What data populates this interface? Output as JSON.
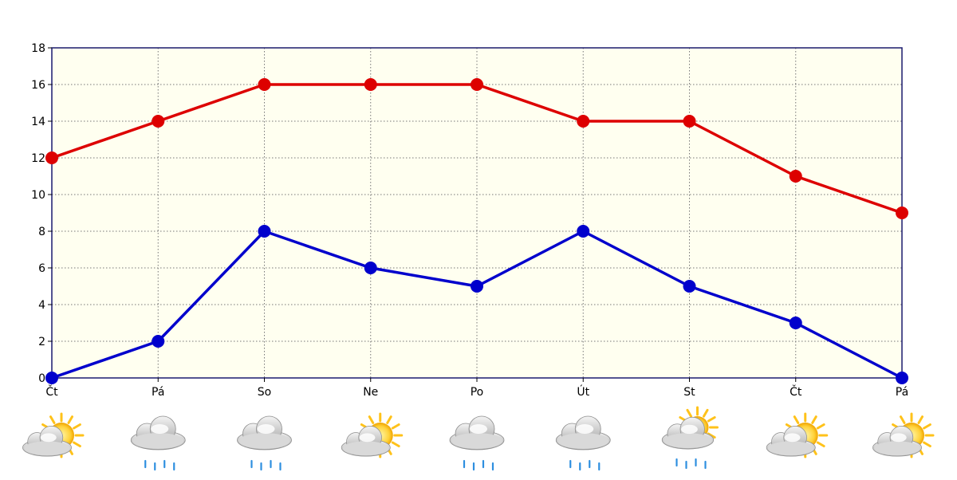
{
  "chart_data": {
    "type": "line",
    "categories": [
      "Čt",
      "Pá",
      "So",
      "Ne",
      "Po",
      "Út",
      "St",
      "Čt",
      "Pá"
    ],
    "ylim": [
      0,
      18
    ],
    "yticks": [
      0,
      2,
      4,
      6,
      8,
      10,
      12,
      14,
      16,
      18
    ],
    "grid": true,
    "series": [
      {
        "color": "#dd0000",
        "values": [
          12,
          14,
          16,
          16,
          16,
          14,
          14,
          11,
          9
        ]
      },
      {
        "color": "#0000cc",
        "values": [
          0,
          2,
          8,
          6,
          5,
          8,
          5,
          3,
          0
        ]
      }
    ],
    "weather_icons": [
      "partly-sunny-icon",
      "rain-cloud-icon",
      "rain-cloud-icon",
      "partly-sunny-icon",
      "rain-cloud-icon",
      "rain-cloud-icon",
      "sun-cloud-rain-icon",
      "partly-sunny-icon",
      "partly-sunny-icon"
    ],
    "colors": {
      "plot_background": "#fffff0",
      "frame": "#1a1a6e",
      "grid": "#777777"
    }
  }
}
